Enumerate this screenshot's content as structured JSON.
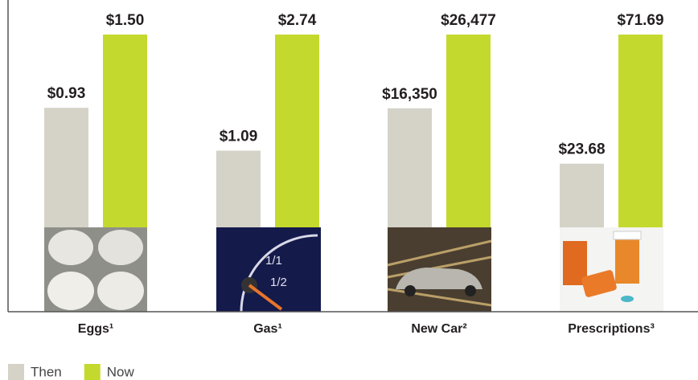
{
  "chart_data": {
    "type": "bar",
    "categories": [
      "Eggs¹",
      "Gas¹",
      "New Car²",
      "Prescriptions³"
    ],
    "series": [
      {
        "name": "Then",
        "color": "#d5d3c7",
        "values": [
          0.93,
          1.09,
          16350,
          23.68
        ],
        "value_labels": [
          "$0.93",
          "$1.09",
          "$16,350",
          "$23.68"
        ]
      },
      {
        "name": "Now",
        "color": "#c4d92e",
        "values": [
          1.5,
          2.74,
          26477,
          71.69
        ],
        "value_labels": [
          "$1.50",
          "$2.74",
          "$26,477",
          "$71.69"
        ]
      }
    ],
    "legend": "bottom-left"
  }
}
